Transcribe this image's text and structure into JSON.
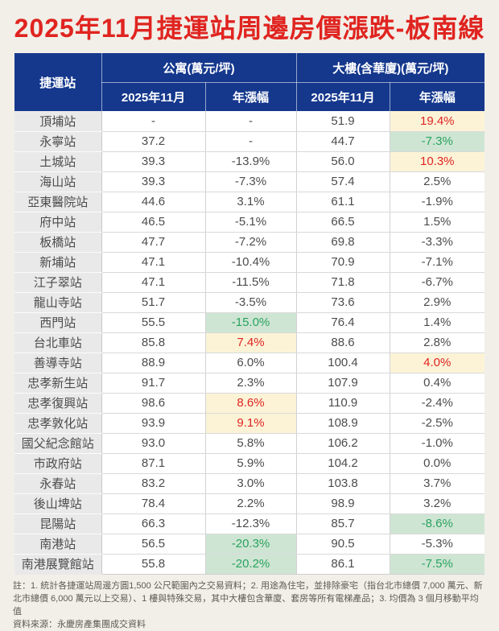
{
  "page": {
    "title": "2025年11月捷運站周邊房價漲跌-板南線",
    "background_color": "#f1efe8",
    "title_color": "#e02420"
  },
  "table": {
    "header": {
      "station": "捷運站",
      "apartment_group": "公寓(萬元/坪)",
      "building_group": "大樓(含華廈)(萬元/坪)",
      "sub_month": "2025年11月",
      "sub_yoy": "年漲幅",
      "header_bg": "#15388d",
      "header_text": "#ffffff"
    },
    "colors": {
      "highlight_up_bg": "#fcf3d7",
      "highlight_up_text": "#e02420",
      "highlight_down_bg": "#cfe5d4",
      "highlight_down_text": "#29a35e",
      "station_cell_bg": "#e9e9e9",
      "value_cell_bg": "#ffffff",
      "value_text": "#4c4c4c"
    },
    "rows": [
      {
        "station": "頂埔站",
        "apt_price": "-",
        "apt_yoy": "-",
        "bld_price": "51.9",
        "bld_yoy": "19.4%",
        "apt_hl": "",
        "bld_hl": "up"
      },
      {
        "station": "永寧站",
        "apt_price": "37.2",
        "apt_yoy": "-",
        "bld_price": "44.7",
        "bld_yoy": "-7.3%",
        "apt_hl": "",
        "bld_hl": "down"
      },
      {
        "station": "土城站",
        "apt_price": "39.3",
        "apt_yoy": "-13.9%",
        "bld_price": "56.0",
        "bld_yoy": "10.3%",
        "apt_hl": "",
        "bld_hl": "up"
      },
      {
        "station": "海山站",
        "apt_price": "39.3",
        "apt_yoy": "-7.3%",
        "bld_price": "57.4",
        "bld_yoy": "2.5%",
        "apt_hl": "",
        "bld_hl": ""
      },
      {
        "station": "亞東醫院站",
        "apt_price": "44.6",
        "apt_yoy": "3.1%",
        "bld_price": "61.1",
        "bld_yoy": "-1.9%",
        "apt_hl": "",
        "bld_hl": ""
      },
      {
        "station": "府中站",
        "apt_price": "46.5",
        "apt_yoy": "-5.1%",
        "bld_price": "66.5",
        "bld_yoy": "1.5%",
        "apt_hl": "",
        "bld_hl": ""
      },
      {
        "station": "板橋站",
        "apt_price": "47.7",
        "apt_yoy": "-7.2%",
        "bld_price": "69.8",
        "bld_yoy": "-3.3%",
        "apt_hl": "",
        "bld_hl": ""
      },
      {
        "station": "新埔站",
        "apt_price": "47.1",
        "apt_yoy": "-10.4%",
        "bld_price": "70.9",
        "bld_yoy": "-7.1%",
        "apt_hl": "",
        "bld_hl": ""
      },
      {
        "station": "江子翠站",
        "apt_price": "47.1",
        "apt_yoy": "-11.5%",
        "bld_price": "71.8",
        "bld_yoy": "-6.7%",
        "apt_hl": "",
        "bld_hl": ""
      },
      {
        "station": "龍山寺站",
        "apt_price": "51.7",
        "apt_yoy": "-3.5%",
        "bld_price": "73.6",
        "bld_yoy": "2.9%",
        "apt_hl": "",
        "bld_hl": ""
      },
      {
        "station": "西門站",
        "apt_price": "55.5",
        "apt_yoy": "-15.0%",
        "bld_price": "76.4",
        "bld_yoy": "1.4%",
        "apt_hl": "down",
        "bld_hl": ""
      },
      {
        "station": "台北車站",
        "apt_price": "85.8",
        "apt_yoy": "7.4%",
        "bld_price": "88.6",
        "bld_yoy": "2.8%",
        "apt_hl": "up",
        "bld_hl": ""
      },
      {
        "station": "善導寺站",
        "apt_price": "88.9",
        "apt_yoy": "6.0%",
        "bld_price": "100.4",
        "bld_yoy": "4.0%",
        "apt_hl": "",
        "bld_hl": "up"
      },
      {
        "station": "忠孝新生站",
        "apt_price": "91.7",
        "apt_yoy": "2.3%",
        "bld_price": "107.9",
        "bld_yoy": "0.4%",
        "apt_hl": "",
        "bld_hl": ""
      },
      {
        "station": "忠孝復興站",
        "apt_price": "98.6",
        "apt_yoy": "8.6%",
        "bld_price": "110.9",
        "bld_yoy": "-2.4%",
        "apt_hl": "up",
        "bld_hl": ""
      },
      {
        "station": "忠孝敦化站",
        "apt_price": "93.9",
        "apt_yoy": "9.1%",
        "bld_price": "108.9",
        "bld_yoy": "-2.5%",
        "apt_hl": "up",
        "bld_hl": ""
      },
      {
        "station": "國父紀念館站",
        "apt_price": "93.0",
        "apt_yoy": "5.8%",
        "bld_price": "106.2",
        "bld_yoy": "-1.0%",
        "apt_hl": "",
        "bld_hl": ""
      },
      {
        "station": "市政府站",
        "apt_price": "87.1",
        "apt_yoy": "5.9%",
        "bld_price": "104.2",
        "bld_yoy": "0.0%",
        "apt_hl": "",
        "bld_hl": ""
      },
      {
        "station": "永春站",
        "apt_price": "83.2",
        "apt_yoy": "3.0%",
        "bld_price": "103.8",
        "bld_yoy": "3.7%",
        "apt_hl": "",
        "bld_hl": ""
      },
      {
        "station": "後山埤站",
        "apt_price": "78.4",
        "apt_yoy": "2.2%",
        "bld_price": "98.9",
        "bld_yoy": "3.2%",
        "apt_hl": "",
        "bld_hl": ""
      },
      {
        "station": "昆陽站",
        "apt_price": "66.3",
        "apt_yoy": "-12.3%",
        "bld_price": "85.7",
        "bld_yoy": "-8.6%",
        "apt_hl": "",
        "bld_hl": "down"
      },
      {
        "station": "南港站",
        "apt_price": "56.5",
        "apt_yoy": "-20.3%",
        "bld_price": "90.5",
        "bld_yoy": "-5.3%",
        "apt_hl": "down",
        "bld_hl": ""
      },
      {
        "station": "南港展覽館站",
        "apt_price": "55.8",
        "apt_yoy": "-20.2%",
        "bld_price": "86.1",
        "bld_yoy": "-7.5%",
        "apt_hl": "down",
        "bld_hl": "down"
      }
    ]
  },
  "footer": {
    "note": "註：1. 統計各捷運站周邊方圓1,500 公尺範圍內之交易資料；2. 用途為住宅，並排除豪宅（指台北市總價 7,000 萬元、新北市總價 6,000 萬元以上交易）、1 樓與特殊交易，其中大樓包含華廈、套房等所有電梯產品；3. 均價為 3 個月移動平均值",
    "source": "資料來源：永慶房產集團成交資料"
  },
  "chart_data": {
    "type": "table",
    "title": "2025年11月捷運站周邊房價漲跌-板南線",
    "columns": [
      "捷運站",
      "公寓 2025年11月 (萬元/坪)",
      "公寓 年漲幅 (%)",
      "大樓(含華廈) 2025年11月 (萬元/坪)",
      "大樓(含華廈) 年漲幅 (%)"
    ],
    "rows": [
      [
        "頂埔站",
        null,
        null,
        51.9,
        19.4
      ],
      [
        "永寧站",
        37.2,
        null,
        44.7,
        -7.3
      ],
      [
        "土城站",
        39.3,
        -13.9,
        56.0,
        10.3
      ],
      [
        "海山站",
        39.3,
        -7.3,
        57.4,
        2.5
      ],
      [
        "亞東醫院站",
        44.6,
        3.1,
        61.1,
        -1.9
      ],
      [
        "府中站",
        46.5,
        -5.1,
        66.5,
        1.5
      ],
      [
        "板橋站",
        47.7,
        -7.2,
        69.8,
        -3.3
      ],
      [
        "新埔站",
        47.1,
        -10.4,
        70.9,
        -7.1
      ],
      [
        "江子翠站",
        47.1,
        -11.5,
        71.8,
        -6.7
      ],
      [
        "龍山寺站",
        51.7,
        -3.5,
        73.6,
        2.9
      ],
      [
        "西門站",
        55.5,
        -15.0,
        76.4,
        1.4
      ],
      [
        "台北車站",
        85.8,
        7.4,
        88.6,
        2.8
      ],
      [
        "善導寺站",
        88.9,
        6.0,
        100.4,
        4.0
      ],
      [
        "忠孝新生站",
        91.7,
        2.3,
        107.9,
        0.4
      ],
      [
        "忠孝復興站",
        98.6,
        8.6,
        110.9,
        -2.4
      ],
      [
        "忠孝敦化站",
        93.9,
        9.1,
        108.9,
        -2.5
      ],
      [
        "國父紀念館站",
        93.0,
        5.8,
        106.2,
        -1.0
      ],
      [
        "市政府站",
        87.1,
        5.9,
        104.2,
        0.0
      ],
      [
        "永春站",
        83.2,
        3.0,
        103.8,
        3.7
      ],
      [
        "後山埤站",
        78.4,
        2.2,
        98.9,
        3.2
      ],
      [
        "昆陽站",
        66.3,
        -12.3,
        85.7,
        -8.6
      ],
      [
        "南港站",
        56.5,
        -20.3,
        90.5,
        -5.3
      ],
      [
        "南港展覽館站",
        55.8,
        -20.2,
        86.1,
        -7.5
      ]
    ],
    "highlight_rule": "top-3 yearly gains per column shown red on light-yellow; top-3 yearly declines per column shown green on light-green"
  }
}
